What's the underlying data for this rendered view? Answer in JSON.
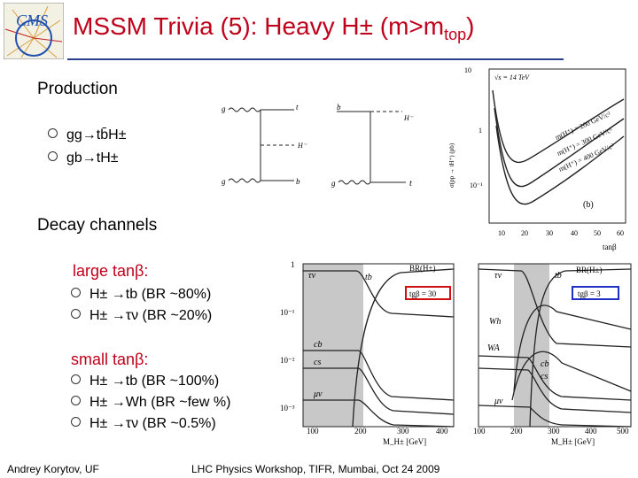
{
  "slide": {
    "logo_text": "CMS",
    "title_main": "MSSM Trivia (5): Heavy H± (m>m",
    "title_sub": "top",
    "title_close": ")"
  },
  "production": {
    "heading": "Production",
    "items": [
      "gg→tb̄H±",
      "gb→tH±"
    ]
  },
  "decay": {
    "heading": "Decay channels",
    "large": {
      "heading": "large tanβ:",
      "items": [
        "H± →tb (BR ~80%)",
        "H± →τν (BR ~20%)"
      ]
    },
    "small": {
      "heading": "small tanβ:",
      "items": [
        "H± →tb  (BR ~100%)",
        "H± →Wh (BR ~few %)",
        "H± →τν  (BR ~0.5%)"
      ]
    }
  },
  "feynman": {
    "left": {
      "g_top": "g",
      "t_top": "t",
      "h_label": "H⁻",
      "g_bot": "g",
      "b_bot": "b"
    },
    "right": {
      "b_top": "b",
      "h_label": "H⁻",
      "g_bot": "g",
      "t_bot": "t"
    }
  },
  "xsec_plot": {
    "energy": "√s = 14 TeV",
    "ylabel": "σ(pp → tH⁺) (pb)",
    "xlabel": "tanβ",
    "y_ticks": [
      "10",
      "1",
      "10⁻¹"
    ],
    "x_ticks": [
      "10",
      "20",
      "30",
      "40",
      "50",
      "60"
    ],
    "curve_labels": [
      "m(H⁺) = 200 GeV/c²",
      "m(H⁺) = 300 GeV/c²",
      "m(H⁺) = 400 GeV/c²"
    ],
    "panel_label": "(b)",
    "colors": {
      "curves": "#222222"
    }
  },
  "br_plot_left": {
    "ylabel_ticks": [
      "1",
      "10⁻¹",
      "10⁻²",
      "10⁻³"
    ],
    "x_ticks": [
      "100",
      "200",
      "300",
      "400"
    ],
    "xlabel": "M_H± [GeV]",
    "title": "BR(H±)",
    "tanb_box": "tgβ = 30",
    "channel_labels": [
      "τν",
      "tb",
      "cb",
      "cs",
      "μν"
    ],
    "colors": {
      "box": "#d01010",
      "shade": "#c8c8c8"
    }
  },
  "br_plot_right": {
    "x_ticks": [
      "100",
      "200",
      "300",
      "400",
      "500"
    ],
    "xlabel": "M_H± [GeV]",
    "title": "BR(H±)",
    "tanb_box": "tgβ = 3",
    "channel_labels": [
      "τν",
      "tb",
      "Wh",
      "WA",
      "cb",
      "cs",
      "μν"
    ],
    "colors": {
      "box": "#2030c0",
      "shade": "#c8c8c8"
    }
  },
  "footer": {
    "author": "Andrey Korytov, UF",
    "event": "LHC Physics Workshop, TIFR, Mumbai, Oct 24 2009"
  }
}
